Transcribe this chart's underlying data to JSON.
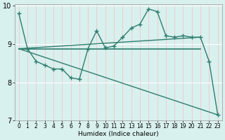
{
  "xlabel": "Humidex (Indice chaleur)",
  "bg_color": "#d8f0ee",
  "line_color": "#2e7d6e",
  "grid_color": "#c8e8e4",
  "xlim": [
    -0.5,
    23.5
  ],
  "ylim": [
    7,
    10.05
  ],
  "yticks": [
    7,
    8,
    9,
    10
  ],
  "xticks": [
    0,
    1,
    2,
    3,
    4,
    5,
    6,
    7,
    8,
    9,
    10,
    11,
    12,
    13,
    14,
    15,
    16,
    17,
    18,
    19,
    20,
    21,
    22,
    23
  ],
  "series1_x": [
    0,
    1,
    2,
    3,
    4,
    5,
    6,
    7,
    8,
    9,
    10,
    11,
    12,
    13,
    14,
    15,
    16,
    17,
    18,
    19,
    20,
    21,
    22,
    23
  ],
  "series1_y": [
    9.8,
    8.88,
    8.55,
    8.45,
    8.35,
    8.35,
    8.12,
    8.08,
    8.88,
    9.35,
    8.9,
    8.95,
    9.18,
    9.42,
    9.52,
    9.92,
    9.85,
    9.22,
    9.18,
    9.22,
    9.18,
    9.18,
    8.55,
    7.15
  ],
  "line2_x": [
    0,
    21
  ],
  "line2_y": [
    8.88,
    8.88
  ],
  "line3_x": [
    0,
    21
  ],
  "line3_y": [
    8.88,
    9.18
  ],
  "line4_x": [
    0,
    23
  ],
  "line4_y": [
    8.88,
    7.15
  ]
}
